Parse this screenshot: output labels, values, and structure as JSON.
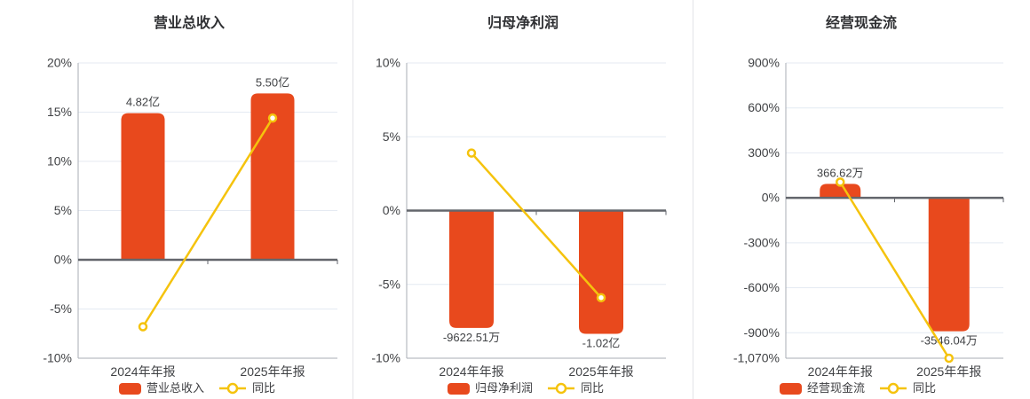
{
  "page": {
    "background": "#ffffff"
  },
  "colors": {
    "bar": "#e8491d",
    "line": "#f5c30d",
    "marker_fill": "#ffffff",
    "grid": "#e4eaf2",
    "zero_axis": "#63666c",
    "axis": "#a9aeb6",
    "text": "#404245",
    "title": "#2f3033",
    "divider": "#e3e4e8"
  },
  "chart_data": [
    {
      "type": "bar",
      "title": "营业总收入",
      "categories": [
        "2024年年报",
        "2025年年报"
      ],
      "bar_series": {
        "name": "营业总收入",
        "display_values": [
          "4.82亿",
          "5.50亿"
        ],
        "heights_in_axis_pct": [
          14.9,
          16.9
        ]
      },
      "line_series": {
        "name": "同比",
        "values_pct": [
          -6.8,
          14.4
        ]
      },
      "y_axis": {
        "min": -10,
        "max": 20,
        "ticks": [
          20,
          15,
          10,
          5,
          0,
          -5,
          -10
        ],
        "tick_labels": [
          "20%",
          "15%",
          "10%",
          "5%",
          "0%",
          "-5%",
          "-10%"
        ]
      },
      "grid": "on",
      "legend_position": "bottom"
    },
    {
      "type": "bar",
      "title": "归母净利润",
      "categories": [
        "2024年年报",
        "2025年年报"
      ],
      "bar_series": {
        "name": "归母净利润",
        "display_values": [
          "-9622.51万",
          "-1.02亿"
        ],
        "heights_in_axis_pct": [
          -7.95,
          -8.35
        ]
      },
      "line_series": {
        "name": "同比",
        "values_pct": [
          3.9,
          -5.9
        ]
      },
      "y_axis": {
        "min": -10,
        "max": 10,
        "ticks": [
          10,
          5,
          0,
          -5,
          -10
        ],
        "tick_labels": [
          "10%",
          "5%",
          "0%",
          "-5%",
          "-10%"
        ]
      },
      "grid": "on",
      "legend_position": "bottom"
    },
    {
      "type": "bar",
      "title": "经营现金流",
      "categories": [
        "2024年年报",
        "2025年年报"
      ],
      "bar_series": {
        "name": "经营现金流",
        "display_values": [
          "366.62万",
          "-3546.04万"
        ],
        "heights_in_axis_pct": [
          93,
          -890
        ]
      },
      "line_series": {
        "name": "同比",
        "values_pct": [
          105,
          -1070
        ]
      },
      "y_axis": {
        "min": -1070,
        "max": 900,
        "ticks": [
          900,
          600,
          300,
          0,
          -300,
          -600,
          -900,
          -1070
        ],
        "tick_labels": [
          "900%",
          "600%",
          "300%",
          "0%",
          "-300%",
          "-600%",
          "-900%",
          "-1,070%"
        ]
      },
      "grid": "on",
      "legend_position": "bottom"
    }
  ]
}
